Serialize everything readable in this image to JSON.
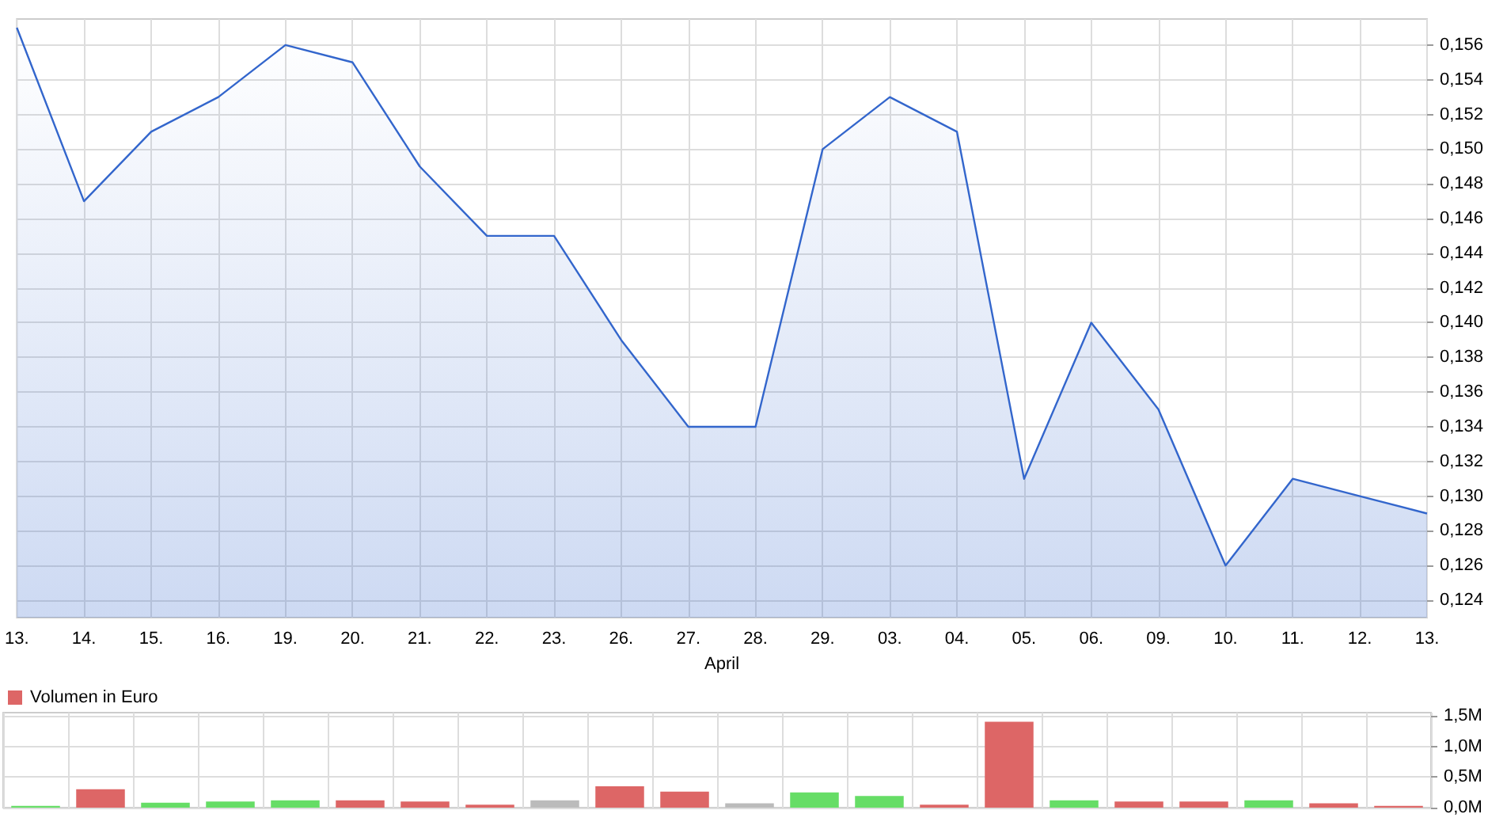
{
  "chart_data": [
    {
      "type": "area",
      "categories": [
        "13.",
        "14.",
        "15.",
        "16.",
        "19.",
        "20.",
        "21.",
        "22.",
        "23.",
        "26.",
        "27.",
        "28.",
        "29.",
        "03.",
        "04.",
        "05.",
        "06.",
        "09.",
        "10.",
        "11.",
        "12.",
        "13."
      ],
      "series": [
        {
          "color": "#3366cc",
          "values": [
            0.157,
            0.147,
            0.151,
            0.153,
            0.156,
            0.155,
            0.149,
            0.145,
            0.145,
            0.139,
            0.134,
            0.134,
            0.15,
            0.153,
            0.151,
            0.131,
            0.14,
            0.135,
            0.126,
            0.131,
            0.13,
            0.129
          ]
        }
      ],
      "ylim": [
        0.123,
        0.1575
      ],
      "yticks": [
        {
          "value": 0.124,
          "label": "0,124"
        },
        {
          "value": 0.126,
          "label": "0,126"
        },
        {
          "value": 0.128,
          "label": "0,128"
        },
        {
          "value": 0.13,
          "label": "0,130"
        },
        {
          "value": 0.132,
          "label": "0,132"
        },
        {
          "value": 0.134,
          "label": "0,134"
        },
        {
          "value": 0.136,
          "label": "0,136"
        },
        {
          "value": 0.138,
          "label": "0,138"
        },
        {
          "value": 0.14,
          "label": "0,140"
        },
        {
          "value": 0.142,
          "label": "0,142"
        },
        {
          "value": 0.144,
          "label": "0,144"
        },
        {
          "value": 0.146,
          "label": "0,146"
        },
        {
          "value": 0.148,
          "label": "0,148"
        },
        {
          "value": 0.15,
          "label": "0,150"
        },
        {
          "value": 0.152,
          "label": "0,152"
        },
        {
          "value": 0.154,
          "label": "0,154"
        },
        {
          "value": 0.156,
          "label": "0,156"
        }
      ],
      "xlabel": "April",
      "grid": true,
      "legend": false,
      "marker": "none"
    },
    {
      "type": "bar",
      "categories": [
        null,
        null,
        null,
        null,
        null,
        null,
        null,
        null,
        null,
        null,
        null,
        null,
        null,
        null,
        null,
        null,
        null,
        null,
        null,
        null,
        null,
        null
      ],
      "series": [
        {
          "name": "Volumen in Euro",
          "color": "#dd6666",
          "values": [
            0.03,
            0.3,
            0.08,
            0.1,
            0.12,
            0.12,
            0.1,
            0.05,
            0.12,
            0.35,
            0.26,
            0.07,
            0.25,
            0.19,
            0.05,
            1.4,
            0.12,
            0.1,
            0.1,
            0.12,
            0.07,
            0.03
          ],
          "colors": [
            "#66dd66",
            "#dd6666",
            "#66dd66",
            "#66dd66",
            "#66dd66",
            "#dd6666",
            "#dd6666",
            "#dd6666",
            "#bbbbbb",
            "#dd6666",
            "#dd6666",
            "#bbbbbb",
            "#66dd66",
            "#66dd66",
            "#dd6666",
            "#dd6666",
            "#66dd66",
            "#dd6666",
            "#dd6666",
            "#66dd66",
            "#dd6666",
            "#dd6666"
          ]
        }
      ],
      "ylim": [
        0,
        1.55
      ],
      "yticks": [
        {
          "value": 0,
          "label": "0,0M"
        },
        {
          "value": 0.5,
          "label": "0,5M"
        },
        {
          "value": 1.0,
          "label": "1,0M"
        },
        {
          "value": 1.5,
          "label": "1,5M"
        }
      ],
      "grid": true,
      "legend": "top left"
    }
  ]
}
